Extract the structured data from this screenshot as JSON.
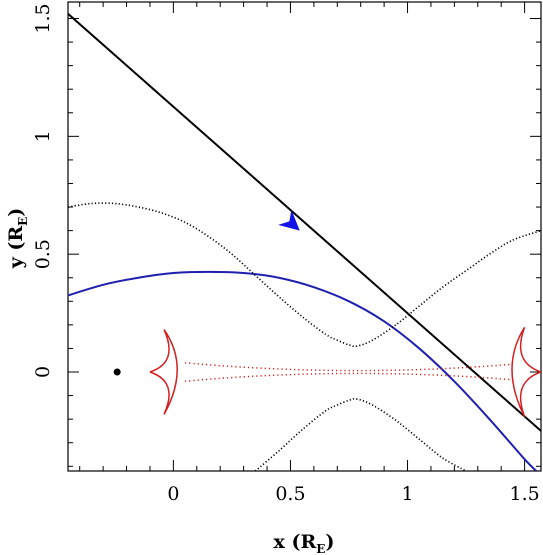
{
  "chart_data": {
    "type": "line",
    "xlim": [
      -0.45,
      1.57
    ],
    "ylim": [
      -0.42,
      1.57
    ],
    "x_ticks": [
      0,
      0.5,
      1,
      1.5
    ],
    "x_tick_labels": [
      "0",
      "0.5",
      "1",
      "1.5"
    ],
    "y_ticks": [
      0,
      0.5,
      1,
      1.5
    ],
    "y_tick_labels": [
      "0",
      "0.5",
      "1",
      "1.5"
    ],
    "xlabel": {
      "main": "x (R",
      "sub": "E",
      "close": ")"
    },
    "ylabel": {
      "main": "y (R",
      "sub": "E",
      "close": ")"
    },
    "grid": false,
    "colors": {
      "trajectory": "#000000",
      "arrow": "#1414e6",
      "blue_curve": "#1f1fb0",
      "caustic": "#d42020",
      "dotted": "#000000"
    },
    "series": [
      {
        "style": "solid-black",
        "x": [
          -0.45,
          1.57
        ],
        "y": [
          1.52,
          -0.25
        ]
      },
      {
        "style": "solid-blue",
        "x": [
          -0.45,
          -0.3,
          -0.15,
          0.0,
          0.15,
          0.3,
          0.45,
          0.6,
          0.75,
          0.9,
          1.05,
          1.2,
          1.35,
          1.5,
          1.55
        ],
        "y": [
          0.325,
          0.37,
          0.4,
          0.42,
          0.425,
          0.42,
          0.4,
          0.36,
          0.3,
          0.215,
          0.1,
          -0.04,
          -0.2,
          -0.37,
          -0.42
        ]
      },
      {
        "style": "dotted-upper",
        "x": [
          -0.45,
          -0.35,
          -0.25,
          -0.15,
          -0.05,
          0.05,
          0.15,
          0.25,
          0.35,
          0.45,
          0.55,
          0.65,
          0.7,
          0.75,
          0.785,
          0.85,
          0.95,
          1.05,
          1.15,
          1.25,
          1.35,
          1.45,
          1.57
        ],
        "y": [
          0.7,
          0.715,
          0.715,
          0.7,
          0.675,
          0.635,
          0.575,
          0.5,
          0.41,
          0.32,
          0.235,
          0.16,
          0.135,
          0.115,
          0.11,
          0.135,
          0.2,
          0.28,
          0.36,
          0.43,
          0.5,
          0.56,
          0.6
        ]
      },
      {
        "style": "dotted-lower",
        "x": [
          0.35,
          0.45,
          0.55,
          0.65,
          0.7,
          0.75,
          0.785,
          0.85,
          0.95,
          1.05,
          1.15,
          1.25
        ],
        "y": [
          -0.42,
          -0.335,
          -0.245,
          -0.165,
          -0.14,
          -0.12,
          -0.115,
          -0.14,
          -0.205,
          -0.285,
          -0.365,
          -0.42
        ]
      }
    ],
    "caustic_cusps": [
      {
        "x": -0.1,
        "y": 0.0
      },
      {
        "x": -0.04,
        "y": 0.18
      },
      {
        "x": -0.04,
        "y": -0.18
      },
      {
        "x": 1.57,
        "y": 0.0
      },
      {
        "x": 1.5,
        "y": 0.19
      },
      {
        "x": 1.5,
        "y": -0.19
      }
    ],
    "point": {
      "x": -0.24,
      "y": 0.0
    },
    "arrow": {
      "x": 0.54,
      "y": 0.6
    }
  }
}
